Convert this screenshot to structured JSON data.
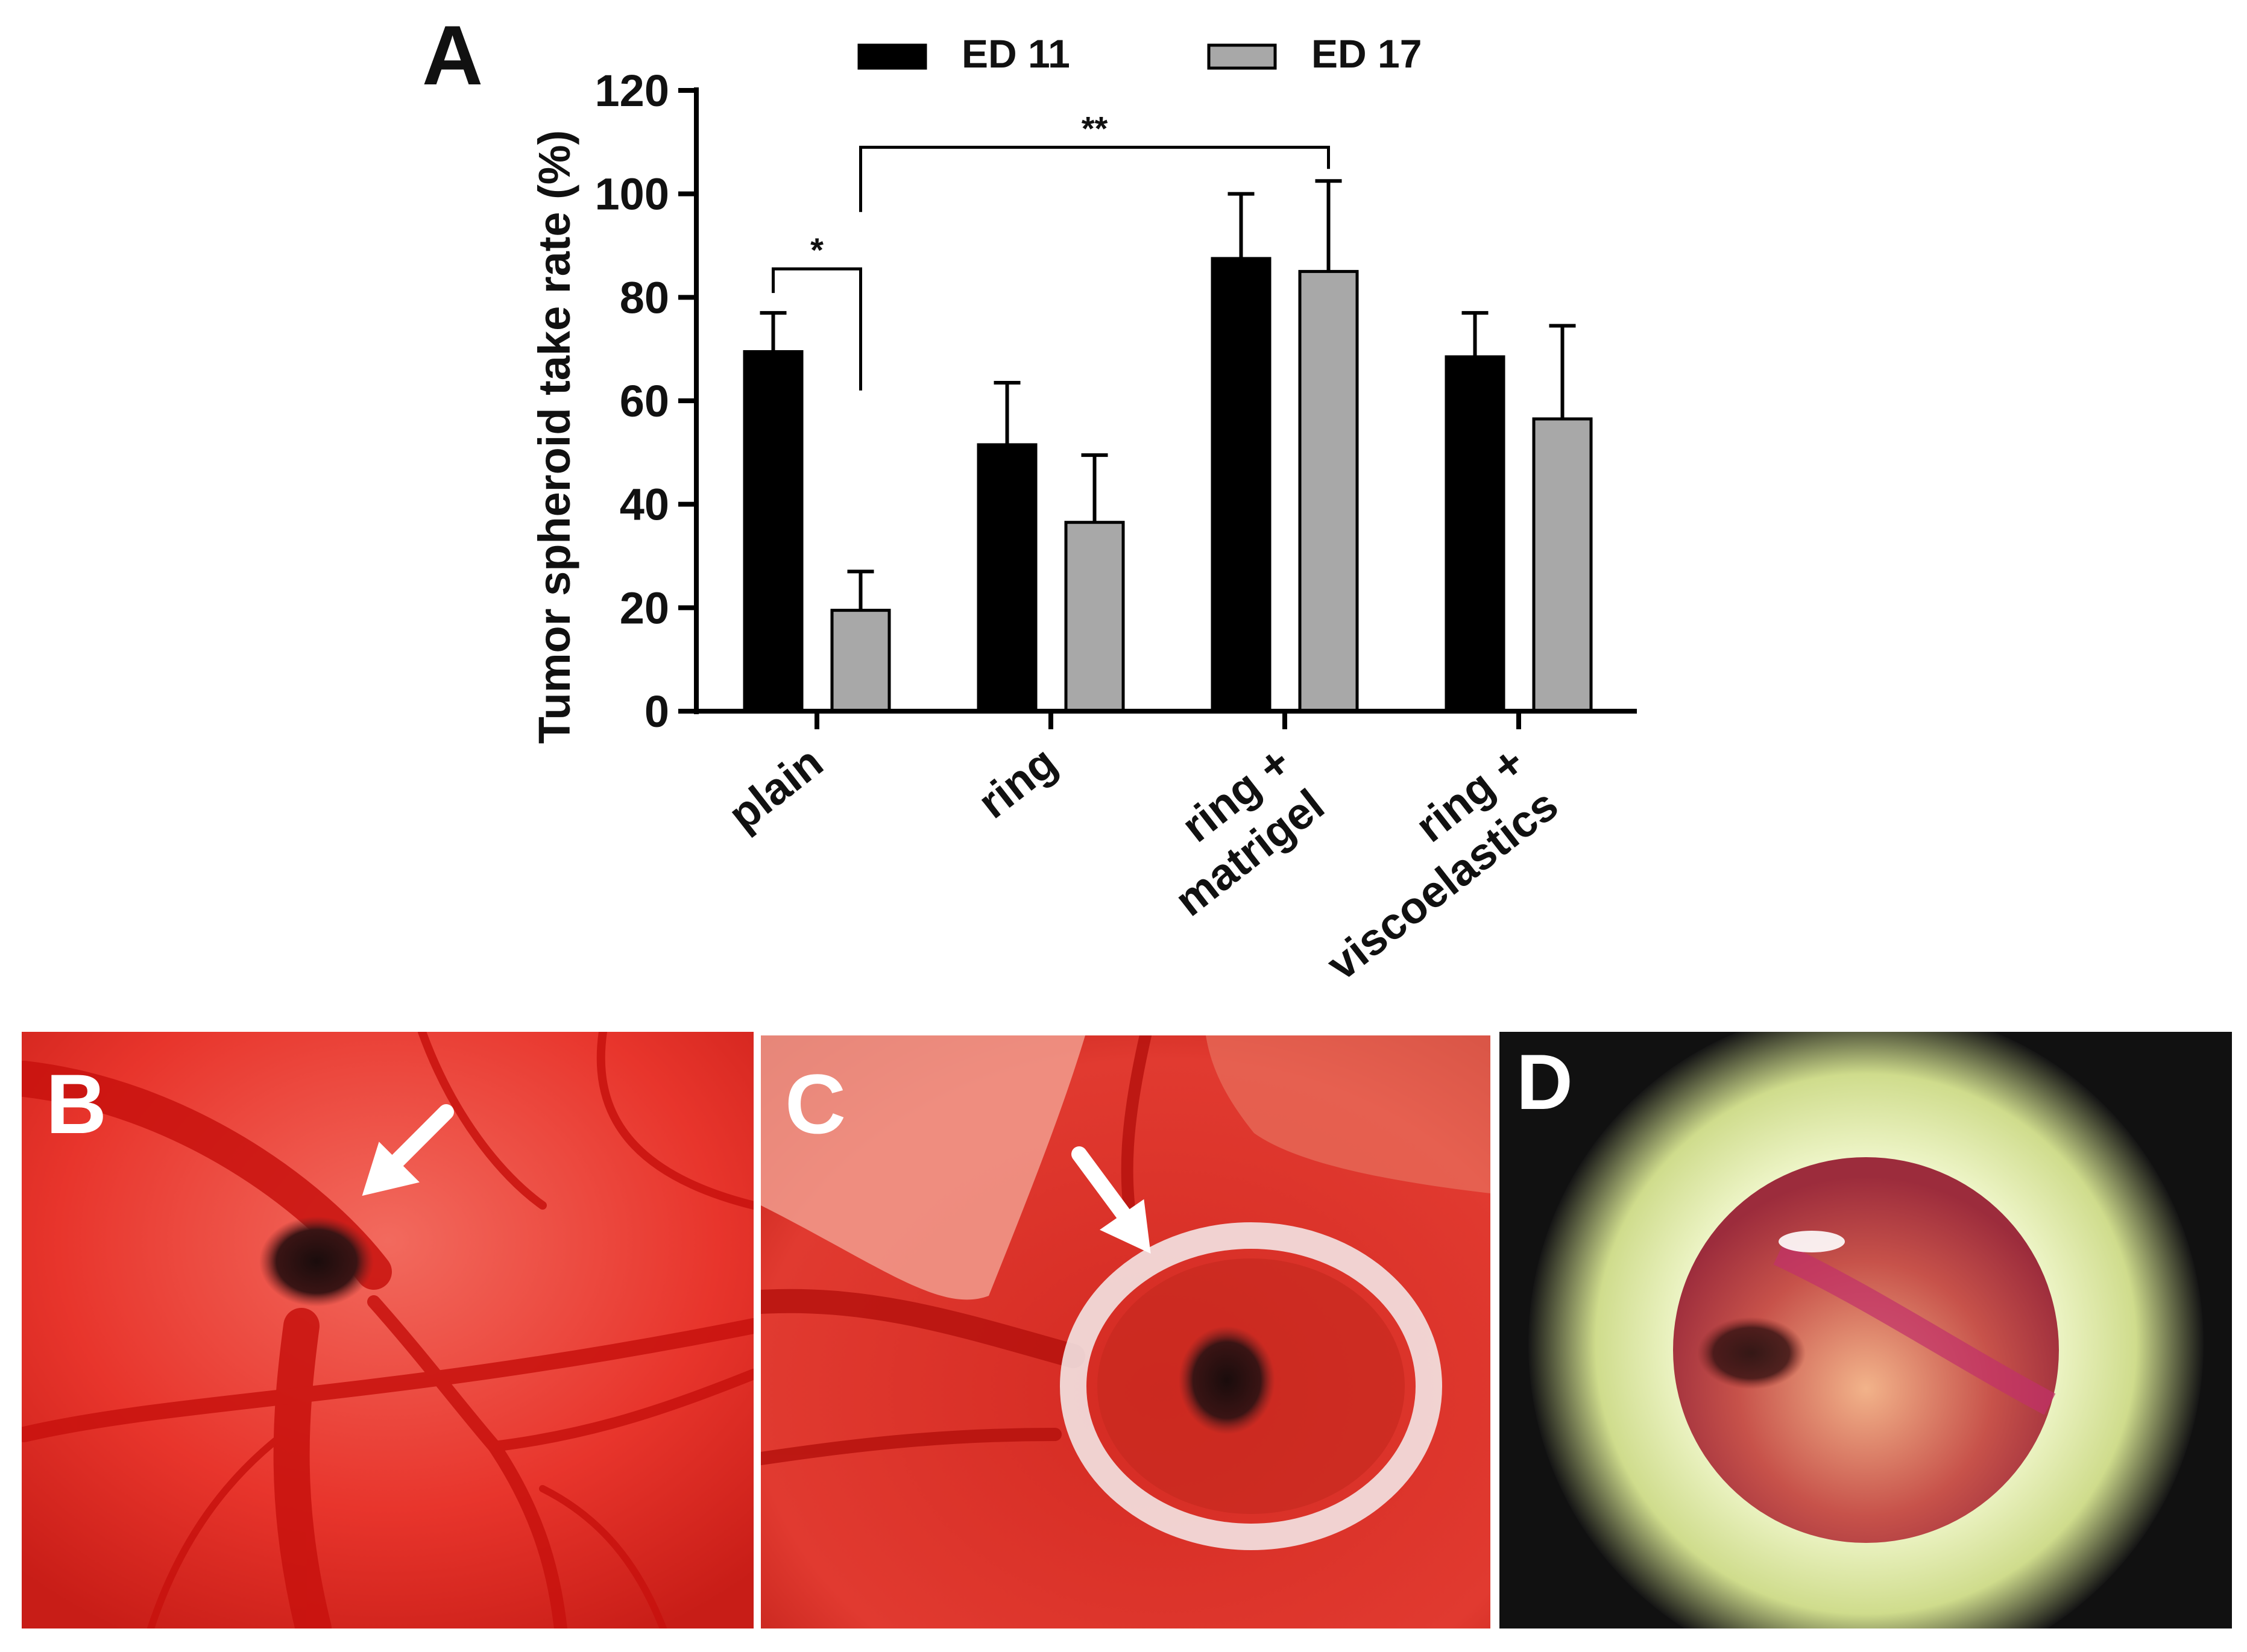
{
  "panel_labels": {
    "a": "A",
    "b": "B",
    "c": "C",
    "d": "D"
  },
  "colors": {
    "ed11": "#000000",
    "ed17": "#a8a8a8",
    "photo_red": "#e8241f",
    "ring_rim": "#eef5c8"
  },
  "chart_data": {
    "type": "bar",
    "ylabel": "Tumor spheroid take rate (%)",
    "ylim": [
      0,
      120
    ],
    "yticks": [
      "0",
      "20",
      "40",
      "60",
      "80",
      "100",
      "120"
    ],
    "categories": [
      {
        "lines": [
          "plain"
        ]
      },
      {
        "lines": [
          "ring"
        ]
      },
      {
        "lines": [
          "ring +",
          "matrigel"
        ]
      },
      {
        "lines": [
          "ring +",
          "viscoelastics"
        ]
      }
    ],
    "legend": {
      "placement": "top",
      "entries": [
        "ED 11",
        "ED 17"
      ]
    },
    "series": [
      {
        "name": "ED 11",
        "values": [
          69.5,
          51.5,
          87.5,
          68.5
        ],
        "errors": [
          7.5,
          12,
          12.5,
          8.5
        ]
      },
      {
        "name": "ED 17",
        "values": [
          19.5,
          36.5,
          85,
          56.5
        ],
        "errors": [
          7.5,
          13,
          17.5,
          18
        ]
      }
    ],
    "annotations": [
      {
        "label": "*",
        "from": [
          0,
          0
        ],
        "to": [
          0,
          1
        ],
        "y": 85.5
      },
      {
        "label": "**",
        "from": [
          0,
          1
        ],
        "to": [
          2,
          1
        ],
        "y": 109
      }
    ]
  }
}
